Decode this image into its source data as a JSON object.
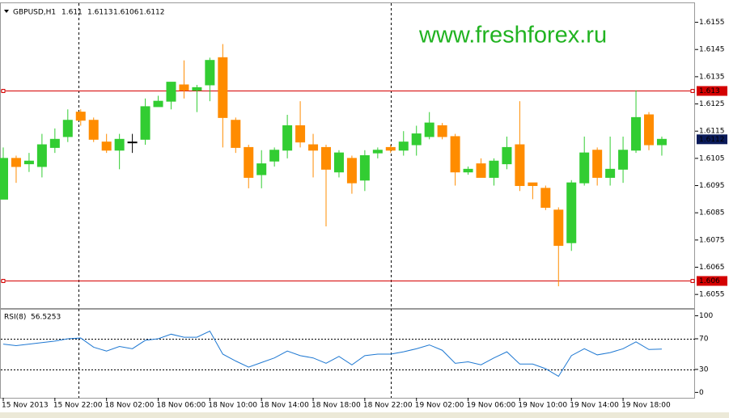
{
  "chart_data": [
    {
      "type": "candlestick",
      "symbol": "GBPUSD,H1",
      "watermark": "www.freshforex.ru",
      "categories": [
        "15 Nov 2013",
        null,
        null,
        null,
        "15 Nov 22:00",
        null,
        null,
        null,
        "18 Nov 02:00",
        null,
        null,
        null,
        "18 Nov 06:00",
        null,
        null,
        null,
        "18 Nov 10:00",
        null,
        null,
        null,
        "18 Nov 14:00",
        null,
        null,
        null,
        "18 Nov 18:00",
        null,
        null,
        null,
        "18 Nov 22:00",
        null,
        null,
        null,
        "19 Nov 02:00",
        null,
        null,
        null,
        "19 Nov 06:00",
        null,
        null,
        null,
        "19 Nov 10:00",
        null,
        null,
        null,
        "19 Nov 14:00",
        null,
        null,
        null,
        "19 Nov 18:00",
        null,
        null,
        null
      ],
      "open": [
        1.609,
        1.6105,
        1.6103,
        1.6102,
        1.6109,
        1.6113,
        1.6122,
        1.6119,
        1.6111,
        1.6108,
        1.6111,
        1.6112,
        1.6124,
        1.6126,
        1.6132,
        1.613,
        1.6132,
        1.6142,
        1.6119,
        1.6109,
        1.6099,
        1.6104,
        1.6108,
        1.6117,
        1.611,
        1.6109,
        1.61,
        1.6105,
        1.6097,
        1.6107,
        1.6109,
        1.6108,
        1.611,
        1.6113,
        1.6117,
        1.6113,
        1.61,
        1.6103,
        1.6098,
        1.6103,
        1.611,
        1.6096,
        1.6094,
        1.6086,
        1.6074,
        1.6096,
        1.6108,
        1.6098,
        1.6101,
        1.6108,
        1.6121,
        1.611
      ],
      "high": [
        1.6109,
        1.6106,
        1.6107,
        1.6114,
        1.6116,
        1.6123,
        1.6123,
        1.612,
        1.6114,
        1.6114,
        1.6114,
        1.6127,
        1.6128,
        1.6133,
        1.6141,
        1.6132,
        1.6142,
        1.6147,
        1.612,
        1.611,
        1.6108,
        1.6109,
        1.6121,
        1.6126,
        1.6114,
        1.611,
        1.6108,
        1.6106,
        1.6108,
        1.6109,
        1.611,
        1.6115,
        1.6117,
        1.6122,
        1.6118,
        1.6114,
        1.6102,
        1.6105,
        1.6105,
        1.6113,
        1.6126,
        1.6096,
        1.6095,
        1.6087,
        1.6097,
        1.6113,
        1.6109,
        1.6113,
        1.6113,
        1.613,
        1.6122,
        1.6113
      ],
      "low": [
        1.609,
        1.6096,
        1.61,
        1.6098,
        1.6107,
        1.6111,
        1.6117,
        1.6111,
        1.6107,
        1.6101,
        1.6107,
        1.611,
        1.6124,
        1.6123,
        1.6127,
        1.6122,
        1.6126,
        1.6109,
        1.6107,
        1.6094,
        1.6094,
        1.6102,
        1.6105,
        1.6109,
        1.6098,
        1.608,
        1.6098,
        1.6092,
        1.6093,
        1.6105,
        1.6107,
        1.6106,
        1.6106,
        1.6112,
        1.6112,
        1.6095,
        1.6099,
        1.6098,
        1.6095,
        1.6101,
        1.6093,
        1.609,
        1.6086,
        1.6058,
        1.6071,
        1.6095,
        1.6095,
        1.6095,
        1.6096,
        1.6107,
        1.6108,
        1.6106
      ],
      "close": [
        1.6105,
        1.6102,
        1.6104,
        1.611,
        1.6112,
        1.6119,
        1.6119,
        1.6112,
        1.6108,
        1.6112,
        1.6111,
        1.6124,
        1.6126,
        1.6133,
        1.613,
        1.6131,
        1.6141,
        1.612,
        1.6109,
        1.6098,
        1.6103,
        1.6108,
        1.6117,
        1.6111,
        1.6108,
        1.6101,
        1.6107,
        1.6096,
        1.6106,
        1.6108,
        1.6108,
        1.6111,
        1.6114,
        1.6118,
        1.6113,
        1.61,
        1.6101,
        1.6098,
        1.6104,
        1.6109,
        1.6095,
        1.6095,
        1.6087,
        1.6073,
        1.6096,
        1.6107,
        1.6098,
        1.6101,
        1.6108,
        1.612,
        1.611,
        1.6112
      ],
      "up_color": "#32cd32",
      "down_color": "#ff8c00",
      "doji_color": "#000000",
      "ylim": [
        1.605,
        1.6162
      ],
      "yticks": [
        1.6155,
        1.6145,
        1.6135,
        1.6125,
        1.6115,
        1.6105,
        1.6095,
        1.6085,
        1.6075,
        1.6065,
        1.6055
      ],
      "hlines": {
        "values": [
          1.613,
          1.606
        ],
        "color": "#d40000"
      },
      "price_label_color": "#0a1a5a"
    },
    {
      "type": "line",
      "title": "RSI(8)",
      "values": [
        63,
        61,
        63,
        65,
        67,
        70,
        71,
        59,
        54,
        60,
        57,
        68,
        70,
        76,
        72,
        72,
        80,
        50,
        41,
        33,
        39,
        45,
        54,
        48,
        45,
        38,
        47,
        36,
        48,
        50,
        50,
        53,
        57,
        62,
        55,
        38,
        40,
        36,
        45,
        53,
        37,
        37,
        31,
        21,
        48,
        57,
        49,
        52,
        57,
        66,
        56,
        56.5253
      ],
      "color": "#1e78d2",
      "ylim": [
        -7,
        108
      ],
      "yticks": [
        100,
        70,
        30,
        0
      ],
      "levels": [
        70,
        30
      ]
    }
  ]
}
